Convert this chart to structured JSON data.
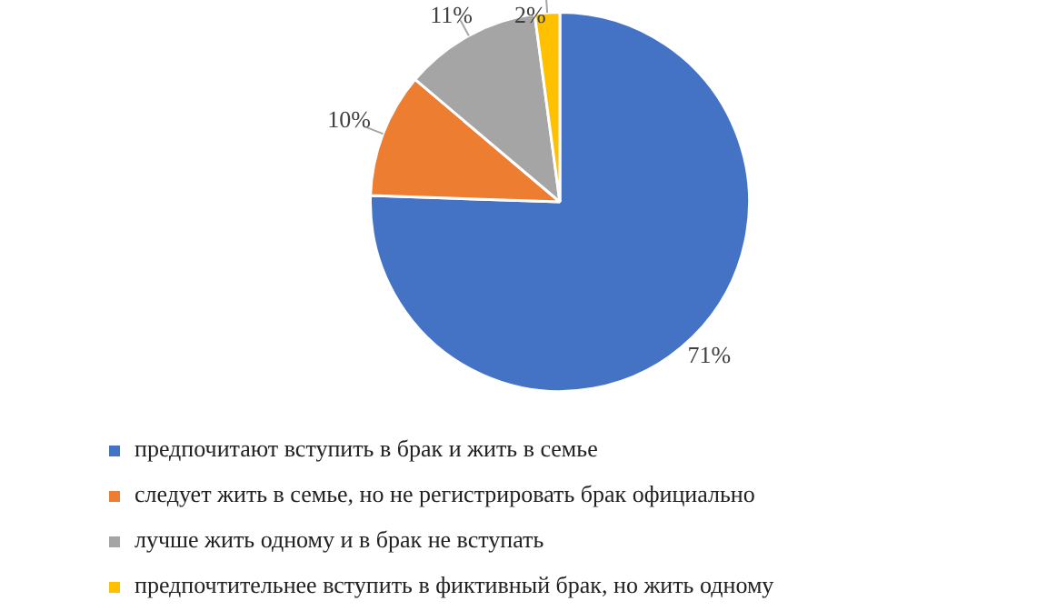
{
  "chart_data": {
    "type": "pie",
    "categories": [
      "предпочитают вступить в брак и жить в семье",
      "следует жить в семье, но не регистрировать брак официально",
      "лучше жить одному и в брак не вступать",
      "предпочтительнее вступить в фиктивный брак, но жить одному"
    ],
    "values": [
      71,
      10,
      11,
      2
    ],
    "value_labels": [
      "71%",
      "10%",
      "11%",
      "2%"
    ],
    "colors": [
      "#4472c4",
      "#ed7d31",
      "#a5a5a5",
      "#ffc000"
    ],
    "legend": "bottom"
  }
}
